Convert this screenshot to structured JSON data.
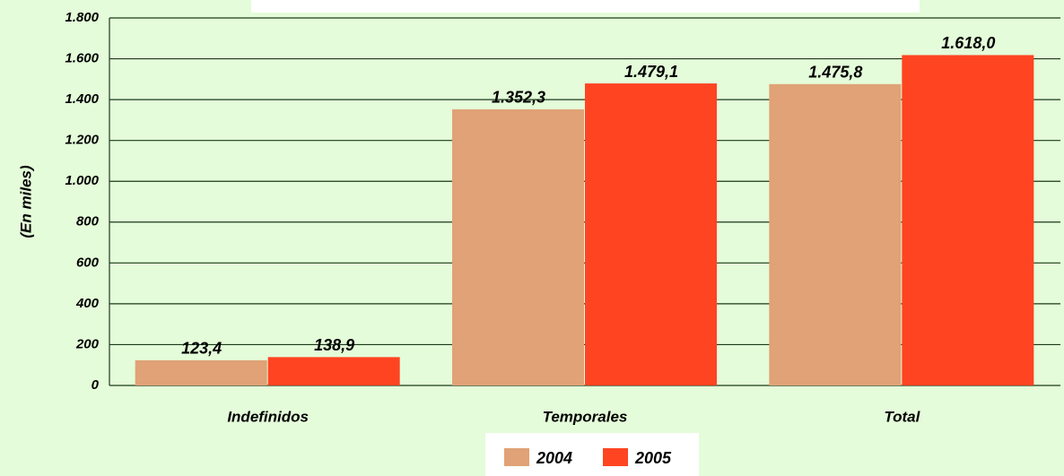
{
  "chart_data": {
    "type": "bar",
    "y_label": "(En miles)",
    "categories": [
      "Indefinidos",
      "Temporales",
      "Total"
    ],
    "series": [
      {
        "name": "2004",
        "color": "#e0a276",
        "values": [
          123.4,
          1352.3,
          1475.8
        ],
        "value_labels": [
          "123,4",
          "1.352,3",
          "1.475,8"
        ]
      },
      {
        "name": "2005",
        "color": "#ff4422",
        "values": [
          138.9,
          1479.1,
          1618.0
        ],
        "value_labels": [
          "138,9",
          "1.479,1",
          "1.618,0"
        ]
      }
    ],
    "ylim": [
      0,
      1800
    ],
    "yticks": [
      0,
      200,
      400,
      600,
      800,
      {
        "value": 1000,
        "label": "1.000"
      },
      {
        "value": 1200,
        "label": "1.200"
      },
      {
        "value": 1400,
        "label": "1.400"
      },
      {
        "value": 1600,
        "label": "1.600"
      },
      {
        "value": 1800,
        "label": "1.800"
      }
    ],
    "grid": true
  }
}
